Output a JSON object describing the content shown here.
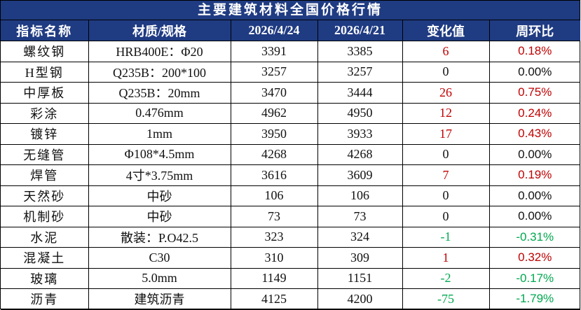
{
  "title": "主要建筑材料全国价格行情",
  "headers": [
    "指标名称",
    "材质/规格",
    "2026/4/24",
    "2026/4/21",
    "变化值",
    "周环比"
  ],
  "colors": {
    "header_bg": "#1f3b82",
    "up": "#c00000",
    "down": "#00a84f"
  },
  "rows": [
    {
      "name": "螺纹钢",
      "spec": "HRB400E：Φ20",
      "cur": "3391",
      "prev": "3385",
      "change": "6",
      "pct": "0.18%",
      "trend": "up"
    },
    {
      "name": "H型钢",
      "spec": "Q235B：200*100",
      "cur": "3257",
      "prev": "3257",
      "change": "0",
      "pct": "0.00%",
      "trend": "flat"
    },
    {
      "name": "中厚板",
      "spec": "Q235B：20mm",
      "cur": "3470",
      "prev": "3444",
      "change": "26",
      "pct": "0.75%",
      "trend": "up"
    },
    {
      "name": "彩涂",
      "spec": "0.476mm",
      "cur": "4962",
      "prev": "4950",
      "change": "12",
      "pct": "0.24%",
      "trend": "up"
    },
    {
      "name": "镀锌",
      "spec": "1mm",
      "cur": "3950",
      "prev": "3933",
      "change": "17",
      "pct": "0.43%",
      "trend": "up"
    },
    {
      "name": "无缝管",
      "spec": "Φ108*4.5mm",
      "cur": "4268",
      "prev": "4268",
      "change": "0",
      "pct": "0.00%",
      "trend": "flat"
    },
    {
      "name": "焊管",
      "spec": "4寸*3.75mm",
      "cur": "3616",
      "prev": "3609",
      "change": "7",
      "pct": "0.19%",
      "trend": "up"
    },
    {
      "name": "天然砂",
      "spec": "中砂",
      "cur": "106",
      "prev": "106",
      "change": "0",
      "pct": "0.00%",
      "trend": "flat"
    },
    {
      "name": "机制砂",
      "spec": "中砂",
      "cur": "73",
      "prev": "73",
      "change": "0",
      "pct": "0.00%",
      "trend": "flat"
    },
    {
      "name": "水泥",
      "spec": "散装：P.O42.5",
      "cur": "323",
      "prev": "324",
      "change": "-1",
      "pct": "-0.31%",
      "trend": "down"
    },
    {
      "name": "混凝土",
      "spec": "C30",
      "cur": "310",
      "prev": "309",
      "change": "1",
      "pct": "0.32%",
      "trend": "up"
    },
    {
      "name": "玻璃",
      "spec": "5.0mm",
      "cur": "1149",
      "prev": "1151",
      "change": "-2",
      "pct": "-0.17%",
      "trend": "down"
    },
    {
      "name": "沥青",
      "spec": "建筑沥青",
      "cur": "4125",
      "prev": "4200",
      "change": "-75",
      "pct": "-1.79%",
      "trend": "down"
    }
  ]
}
